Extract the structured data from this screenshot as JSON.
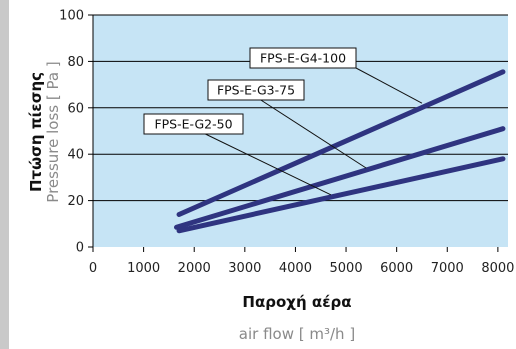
{
  "colors": {
    "plot_bg": "#c6e4f5",
    "series": "#2f3480",
    "grid": "#000000",
    "strip": "#c9c9c9"
  },
  "chart_data": {
    "type": "line",
    "xlabel": "Παροχή αέρα",
    "xlabel_sub": "air flow [ m³/h ]",
    "ylabel": "Πτώση πίεσης",
    "ylabel_sub": "Pressure loss [ Pa ]",
    "xlim": [
      0,
      8200
    ],
    "ylim": [
      0,
      100
    ],
    "x_ticks": [
      0,
      1000,
      2000,
      3000,
      4000,
      5000,
      6000,
      7000,
      8000
    ],
    "y_ticks": [
      0,
      20,
      40,
      60,
      80,
      100
    ],
    "grid": "horizontal",
    "series": [
      {
        "name": "FPS-E-G4-100",
        "x": [
          1700,
          8100
        ],
        "y": [
          14,
          75.5
        ],
        "label_anchor": [
          6500,
          62
        ]
      },
      {
        "name": "FPS-E-G3-75",
        "x": [
          1650,
          8100
        ],
        "y": [
          8.5,
          51
        ],
        "label_anchor": [
          5400,
          34
        ]
      },
      {
        "name": "FPS-E-G2-50",
        "x": [
          1700,
          8100
        ],
        "y": [
          7,
          38
        ],
        "label_anchor": [
          4700,
          22.5
        ]
      }
    ]
  }
}
